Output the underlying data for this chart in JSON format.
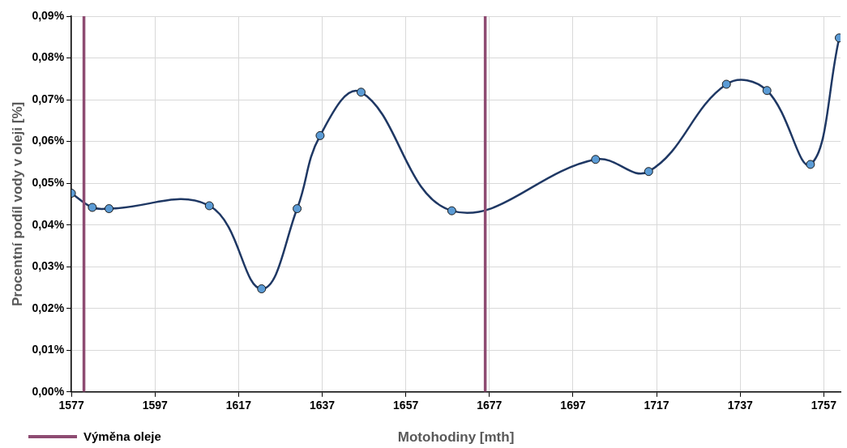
{
  "chart_data": {
    "type": "line",
    "xlabel": "Motohodiny [mth]",
    "ylabel": "Procentní podíl vody v oleji [%]",
    "x": [
      1577,
      1582,
      1586,
      1610,
      1622.5,
      1631,
      1636.5,
      1646.3,
      1668,
      1702.4,
      1715.1,
      1733.7,
      1743.4,
      1753.8,
      1760.7
    ],
    "series": [
      {
        "color": "#1f3864",
        "values": [
          0.0476,
          0.0442,
          0.0439,
          0.0446,
          0.0247,
          0.0439,
          0.0614,
          0.0718,
          0.0434,
          0.0557,
          0.0528,
          0.0737,
          0.0722,
          0.0545,
          0.0848
        ]
      }
    ],
    "marker": "circle",
    "xlim": [
      1577,
      1761
    ],
    "xticks": [
      1577,
      1597,
      1617,
      1637,
      1657,
      1677,
      1697,
      1717,
      1737,
      1757
    ],
    "ylim": [
      0,
      0.09
    ],
    "yticks": [
      {
        "value": 0,
        "label": "0,00%"
      },
      {
        "value": 0.01,
        "label": "0,01%"
      },
      {
        "value": 0.02,
        "label": "0,02%"
      },
      {
        "value": 0.03,
        "label": "0,03%"
      },
      {
        "value": 0.04,
        "label": "0,04%"
      },
      {
        "value": 0.05,
        "label": "0,05%"
      },
      {
        "value": 0.06,
        "label": "0,06%"
      },
      {
        "value": 0.07,
        "label": "0,07%"
      },
      {
        "value": 0.08,
        "label": "0,08%"
      },
      {
        "value": 0.09,
        "label": "0,09%"
      }
    ],
    "ref_lines": [
      {
        "axis": "x",
        "value": 1580,
        "label": "Výměna oleje",
        "color": "#8e4c72"
      },
      {
        "axis": "x",
        "value": 1676,
        "color": "#8e4c72"
      }
    ],
    "grid": true,
    "legend": "bottom left"
  }
}
